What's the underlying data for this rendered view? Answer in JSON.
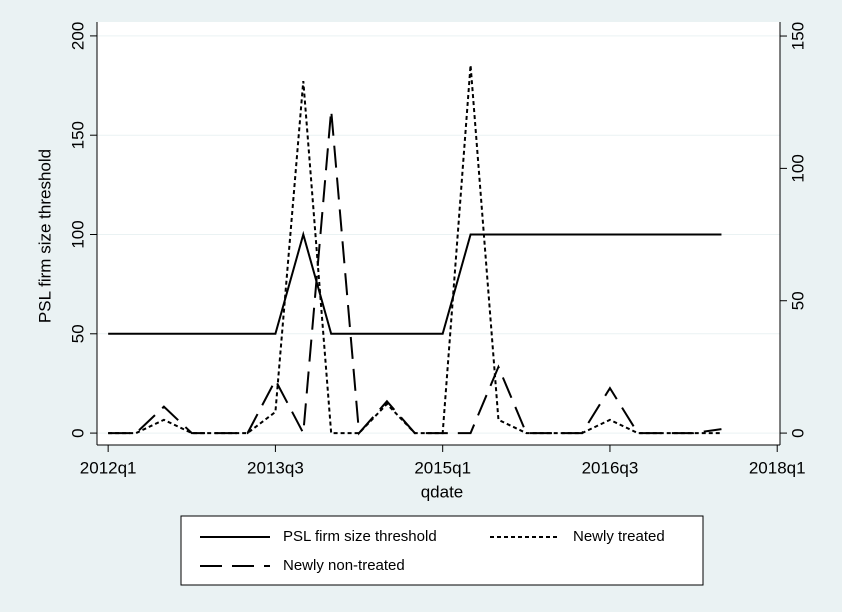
{
  "chart_data": {
    "type": "line",
    "x_label": "qdate",
    "y_label": "PSL firm size threshold",
    "x": [
      208,
      209,
      210,
      211,
      212,
      213,
      214,
      215,
      216,
      217,
      218,
      219,
      220,
      221,
      222,
      223,
      224,
      225,
      226,
      227,
      228,
      229,
      230
    ],
    "xlim": [
      207.6,
      232.1
    ],
    "xticks": [
      {
        "value": 208,
        "label": "2012q1"
      },
      {
        "value": 214,
        "label": "2013q3"
      },
      {
        "value": 220,
        "label": "2015q1"
      },
      {
        "value": 226,
        "label": "2016q3"
      },
      {
        "value": 232,
        "label": "2018q1"
      }
    ],
    "ylim": [
      -6,
      207
    ],
    "yticks": [
      0,
      50,
      100,
      150,
      200
    ],
    "y2lim": [
      -4.5,
      155.3
    ],
    "y2ticks": [
      0,
      50,
      100,
      150
    ],
    "grid": true,
    "series": [
      {
        "name": "PSL firm size threshold",
        "color": "#000000",
        "dash": "solid",
        "values": [
          50,
          50,
          50,
          50,
          50,
          50,
          50,
          100,
          50,
          50,
          50,
          50,
          50,
          100,
          100,
          100,
          100,
          100,
          100,
          100,
          100,
          100,
          100
        ]
      },
      {
        "name": "Newly treated",
        "color": "#000000",
        "dash": "dotted",
        "axis": "y2",
        "values": [
          0,
          0,
          5,
          0,
          0,
          0,
          8,
          133,
          0,
          0,
          11,
          0,
          0,
          139,
          5,
          0,
          0,
          0,
          5,
          0,
          0,
          0,
          0
        ]
      },
      {
        "name": "Newly non-treated",
        "color": "#000000",
        "dash": "dashed",
        "axis": "y2",
        "values": [
          0,
          0,
          10,
          0,
          0,
          0,
          20,
          0,
          122,
          0,
          12,
          0,
          0,
          0,
          25,
          0,
          0,
          0,
          17,
          0,
          0,
          0,
          1.5
        ]
      }
    ]
  }
}
